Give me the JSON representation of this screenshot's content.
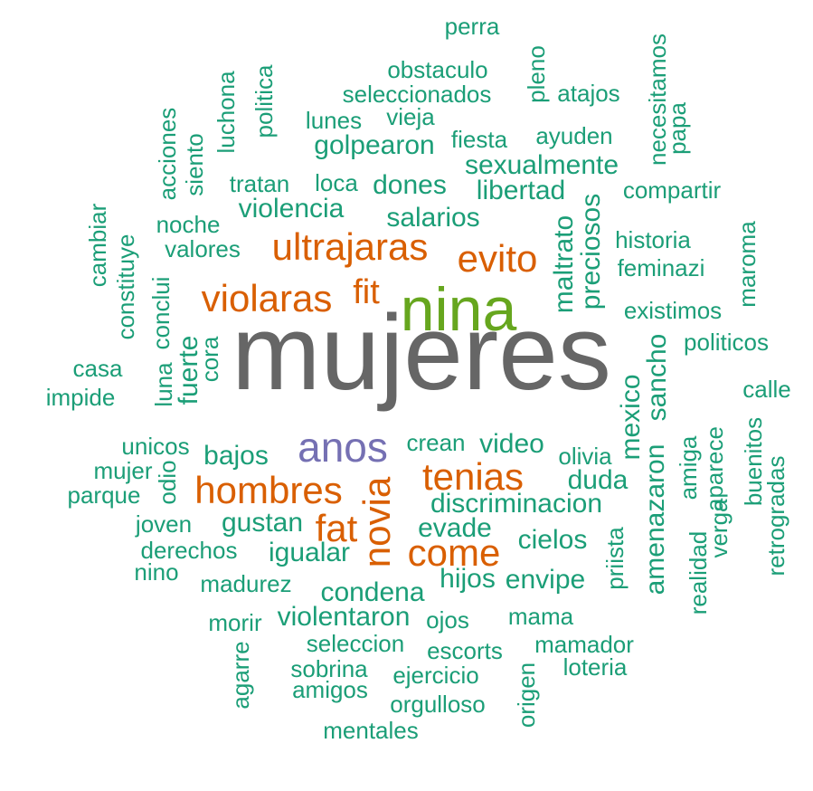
{
  "colors": {
    "biggest": "#666666",
    "second": "#66a61e",
    "third": "#7570b3",
    "large": "#d95f02",
    "common": "#1b9e77"
  },
  "words": [
    {
      "text": "mujeres",
      "size": 1,
      "color": "biggest"
    },
    {
      "text": "nina",
      "size": 2,
      "color": "second"
    },
    {
      "text": "anos",
      "size": 3,
      "color": "third"
    },
    {
      "text": "ultrajaras",
      "size": 4,
      "color": "large"
    },
    {
      "text": "violaras",
      "size": 4,
      "color": "large"
    },
    {
      "text": "evito",
      "size": 4,
      "color": "large"
    },
    {
      "text": "fit",
      "size": 4,
      "color": "large"
    },
    {
      "text": "hombres",
      "size": 4,
      "color": "large"
    },
    {
      "text": "tenias",
      "size": 4,
      "color": "large"
    },
    {
      "text": "novia",
      "size": 4,
      "color": "large"
    },
    {
      "text": "fat",
      "size": 4,
      "color": "large"
    },
    {
      "text": "come",
      "size": 4,
      "color": "large"
    },
    {
      "text": "perra",
      "size": 6,
      "color": "common"
    },
    {
      "text": "obstaculo",
      "size": 6,
      "color": "common"
    },
    {
      "text": "seleccionados",
      "size": 6,
      "color": "common"
    },
    {
      "text": "vieja",
      "size": 6,
      "color": "common"
    },
    {
      "text": "lunes",
      "size": 6,
      "color": "common"
    },
    {
      "text": "atajos",
      "size": 6,
      "color": "common"
    },
    {
      "text": "pleno",
      "size": 6,
      "color": "common"
    },
    {
      "text": "necesitamos",
      "size": 6,
      "color": "common"
    },
    {
      "text": "papa",
      "size": 6,
      "color": "common"
    },
    {
      "text": "politica",
      "size": 6,
      "color": "common"
    },
    {
      "text": "luchona",
      "size": 6,
      "color": "common"
    },
    {
      "text": "acciones",
      "size": 6,
      "color": "common"
    },
    {
      "text": "siento",
      "size": 6,
      "color": "common"
    },
    {
      "text": "golpearon",
      "size": 5,
      "color": "common"
    },
    {
      "text": "fiesta",
      "size": 6,
      "color": "common"
    },
    {
      "text": "ayuden",
      "size": 6,
      "color": "common"
    },
    {
      "text": "sexualmente",
      "size": 5,
      "color": "common"
    },
    {
      "text": "tratan",
      "size": 6,
      "color": "common"
    },
    {
      "text": "loca",
      "size": 6,
      "color": "common"
    },
    {
      "text": "dones",
      "size": 5,
      "color": "common"
    },
    {
      "text": "libertad",
      "size": 5,
      "color": "common"
    },
    {
      "text": "compartir",
      "size": 6,
      "color": "common"
    },
    {
      "text": "violencia",
      "size": 5,
      "color": "common"
    },
    {
      "text": "noche",
      "size": 6,
      "color": "common"
    },
    {
      "text": "salarios",
      "size": 5,
      "color": "common"
    },
    {
      "text": "preciosos",
      "size": 5,
      "color": "common"
    },
    {
      "text": "maltrato",
      "size": 5,
      "color": "common"
    },
    {
      "text": "historia",
      "size": 6,
      "color": "common"
    },
    {
      "text": "cambiar",
      "size": 6,
      "color": "common"
    },
    {
      "text": "valores",
      "size": 6,
      "color": "common"
    },
    {
      "text": "feminazi",
      "size": 6,
      "color": "common"
    },
    {
      "text": "maroma",
      "size": 6,
      "color": "common"
    },
    {
      "text": "constituye",
      "size": 6,
      "color": "common"
    },
    {
      "text": "existimos",
      "size": 6,
      "color": "common"
    },
    {
      "text": "conclui",
      "size": 6,
      "color": "common"
    },
    {
      "text": "politicos",
      "size": 6,
      "color": "common"
    },
    {
      "text": "casa",
      "size": 6,
      "color": "common"
    },
    {
      "text": "luna",
      "size": 6,
      "color": "common"
    },
    {
      "text": "fuerte",
      "size": 5,
      "color": "common"
    },
    {
      "text": "cora",
      "size": 6,
      "color": "common"
    },
    {
      "text": "impide",
      "size": 6,
      "color": "common"
    },
    {
      "text": "sancho",
      "size": 5,
      "color": "common"
    },
    {
      "text": "calle",
      "size": 6,
      "color": "common"
    },
    {
      "text": "mexico",
      "size": 5,
      "color": "common"
    },
    {
      "text": "unicos",
      "size": 6,
      "color": "common"
    },
    {
      "text": "crean",
      "size": 6,
      "color": "common"
    },
    {
      "text": "video",
      "size": 5,
      "color": "common"
    },
    {
      "text": "bajos",
      "size": 5,
      "color": "common"
    },
    {
      "text": "olivia",
      "size": 6,
      "color": "common"
    },
    {
      "text": "mujer",
      "size": 6,
      "color": "common"
    },
    {
      "text": "odio",
      "size": 6,
      "color": "common"
    },
    {
      "text": "amiga",
      "size": 6,
      "color": "common"
    },
    {
      "text": "aparece",
      "size": 6,
      "color": "common"
    },
    {
      "text": "buenitos",
      "size": 6,
      "color": "common"
    },
    {
      "text": "duda",
      "size": 5,
      "color": "common"
    },
    {
      "text": "parque",
      "size": 6,
      "color": "common"
    },
    {
      "text": "amenazaron",
      "size": 5,
      "color": "common"
    },
    {
      "text": "discriminacion",
      "size": 5,
      "color": "common"
    },
    {
      "text": "retrogradas",
      "size": 6,
      "color": "common"
    },
    {
      "text": "verga",
      "size": 6,
      "color": "common"
    },
    {
      "text": "joven",
      "size": 6,
      "color": "common"
    },
    {
      "text": "gustan",
      "size": 5,
      "color": "common"
    },
    {
      "text": "evade",
      "size": 5,
      "color": "common"
    },
    {
      "text": "realidad",
      "size": 6,
      "color": "common"
    },
    {
      "text": "derechos",
      "size": 6,
      "color": "common"
    },
    {
      "text": "cielos",
      "size": 5,
      "color": "common"
    },
    {
      "text": "igualar",
      "size": 5,
      "color": "common"
    },
    {
      "text": "priista",
      "size": 6,
      "color": "common"
    },
    {
      "text": "nino",
      "size": 6,
      "color": "common"
    },
    {
      "text": "madurez",
      "size": 6,
      "color": "common"
    },
    {
      "text": "hijos",
      "size": 5,
      "color": "common"
    },
    {
      "text": "envipe",
      "size": 5,
      "color": "common"
    },
    {
      "text": "condena",
      "size": 5,
      "color": "common"
    },
    {
      "text": "mama",
      "size": 6,
      "color": "common"
    },
    {
      "text": "morir",
      "size": 6,
      "color": "common"
    },
    {
      "text": "violentaron",
      "size": 5,
      "color": "common"
    },
    {
      "text": "ojos",
      "size": 6,
      "color": "common"
    },
    {
      "text": "seleccion",
      "size": 6,
      "color": "common"
    },
    {
      "text": "mamador",
      "size": 6,
      "color": "common"
    },
    {
      "text": "agarre",
      "size": 6,
      "color": "common"
    },
    {
      "text": "escorts",
      "size": 6,
      "color": "common"
    },
    {
      "text": "loteria",
      "size": 6,
      "color": "common"
    },
    {
      "text": "sobrina",
      "size": 6,
      "color": "common"
    },
    {
      "text": "ejercicio",
      "size": 6,
      "color": "common"
    },
    {
      "text": "origen",
      "size": 6,
      "color": "common"
    },
    {
      "text": "amigos",
      "size": 6,
      "color": "common"
    },
    {
      "text": "orgulloso",
      "size": 6,
      "color": "common"
    },
    {
      "text": "mentales",
      "size": 6,
      "color": "common"
    }
  ]
}
